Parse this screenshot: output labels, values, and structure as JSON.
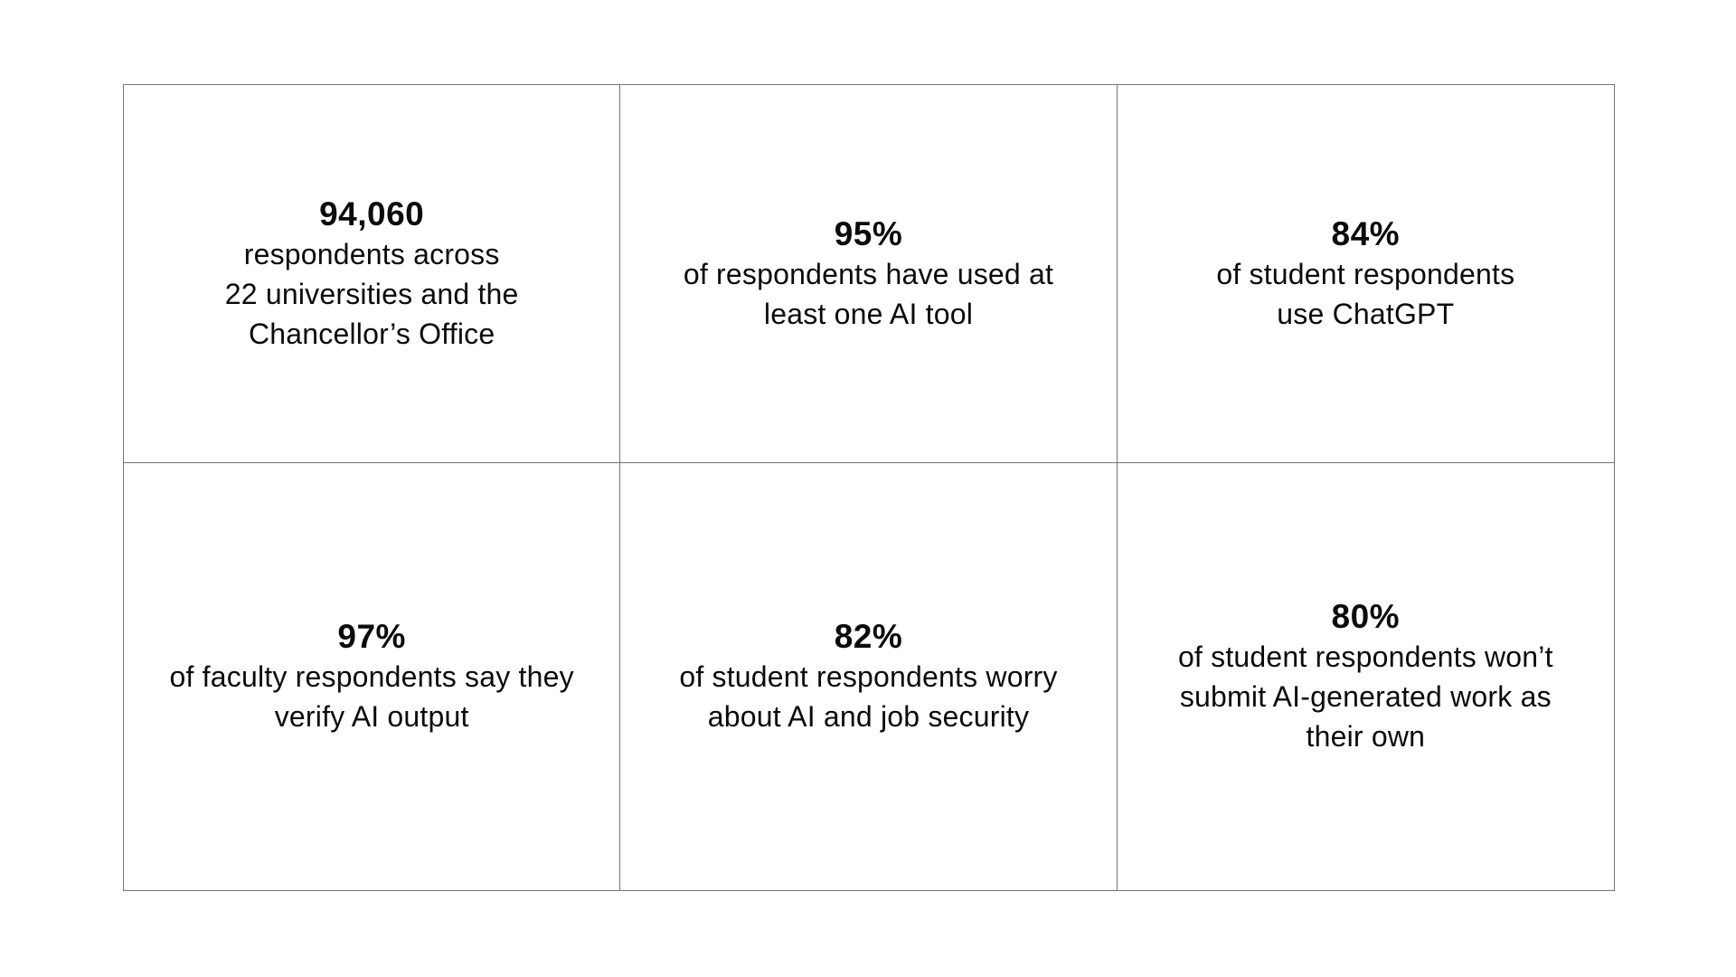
{
  "page": {
    "background_color": "#ffffff",
    "text_color": "#0b0b0b",
    "border_color": "#757575"
  },
  "stats_table": {
    "rows": 2,
    "columns": 3,
    "cells": [
      {
        "value": "94,060",
        "lines": [
          "respondents across",
          "22 universities and the",
          "Chancellor’s Office"
        ]
      },
      {
        "value": "95%",
        "lines": [
          "of respondents have used at",
          "least one AI tool"
        ]
      },
      {
        "value": "84%",
        "lines": [
          "of student respondents",
          "use ChatGPT"
        ]
      },
      {
        "value": "97%",
        "lines": [
          "of faculty respondents say they",
          "verify AI output"
        ]
      },
      {
        "value": "82%",
        "lines": [
          "of student respondents worry",
          "about AI and job security"
        ]
      },
      {
        "value": "80%",
        "lines": [
          "of student respondents won’t",
          "submit AI-generated work as",
          "their own"
        ]
      }
    ]
  }
}
